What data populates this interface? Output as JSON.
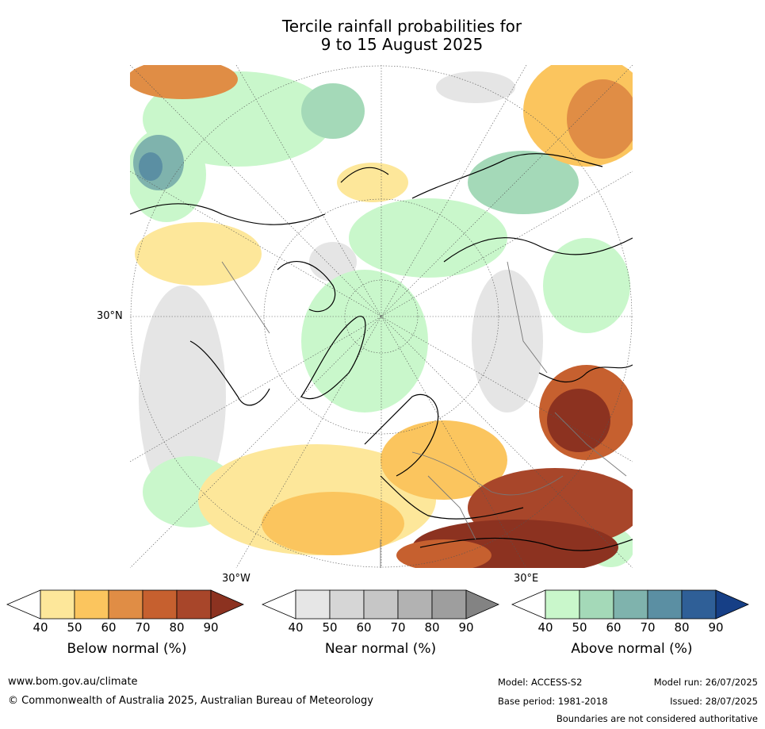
{
  "title_line1": "Tercile rainfall probabilities for",
  "title_line2": "9 to 15 August 2025",
  "map": {
    "lat_label": "30°N",
    "lon_label_left": "30°W",
    "lon_label_right": "30°E"
  },
  "colorbars": [
    {
      "label": "Below normal (%)",
      "ticks": [
        "40",
        "50",
        "60",
        "70",
        "80",
        "90"
      ],
      "colors": [
        "#ffffff",
        "#fde79a",
        "#fbc55e",
        "#e08d45",
        "#c6602f",
        "#a8462a",
        "#8c3220"
      ]
    },
    {
      "label": "Near normal (%)",
      "ticks": [
        "40",
        "50",
        "60",
        "70",
        "80",
        "90"
      ],
      "colors": [
        "#ffffff",
        "#e6e6e6",
        "#d6d6d6",
        "#c6c6c6",
        "#b2b2b2",
        "#9e9e9e",
        "#838383"
      ]
    },
    {
      "label": "Above normal (%)",
      "ticks": [
        "40",
        "50",
        "60",
        "70",
        "80",
        "90"
      ],
      "colors": [
        "#ffffff",
        "#c9f7cb",
        "#a4d9b8",
        "#7fb3ad",
        "#5b8fa3",
        "#2f5f97",
        "#163f86"
      ]
    }
  ],
  "footer": {
    "website": "www.bom.gov.au/climate",
    "copyright": "© Commonwealth of Australia 2025, Australian Bureau of Meteorology",
    "model": "Model: ACCESS-S2",
    "base_period": "Base period: 1981-2018",
    "model_run": "Model run: 26/07/2025",
    "issued": "Issued: 28/07/2025",
    "disclaimer": "Boundaries are not considered authoritative"
  }
}
